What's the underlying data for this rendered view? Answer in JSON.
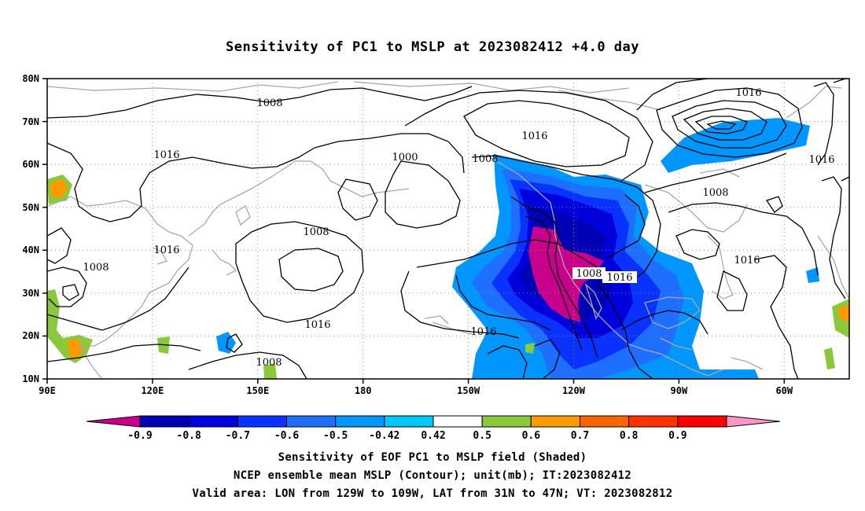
{
  "title": "Sensitivity of PC1 to MSLP at 2023082412 +4.0 day",
  "lat_ticks": [
    "80N",
    "70N",
    "60N",
    "50N",
    "40N",
    "30N",
    "20N",
    "10N"
  ],
  "lon_ticks": [
    "90E",
    "120E",
    "150E",
    "180",
    "150W",
    "120W",
    "90W",
    "60W"
  ],
  "contour_labels": [
    "1008",
    "1016",
    "1000",
    "1008",
    "1016",
    "1016",
    "1016",
    "1008",
    "1016",
    "1008",
    "1016",
    "1016",
    "1008",
    "1016",
    "1008",
    "1008"
  ],
  "colorbar": {
    "labels": [
      "-0.9",
      "-0.8",
      "-0.7",
      "-0.6",
      "-0.5",
      "-0.42",
      "0.42",
      "0.5",
      "0.6",
      "0.7",
      "0.8",
      "0.9"
    ],
    "colors": [
      "#c8008c",
      "#0000b4",
      "#0000dc",
      "#0a32ff",
      "#1e6eff",
      "#0096ff",
      "#00c8ff",
      "#ffffff",
      "#8cc83c",
      "#ff9b00",
      "#ff6400",
      "#ff3200",
      "#ff0000",
      "#ff96c8"
    ]
  },
  "caption": [
    "Sensitivity of EOF PC1 to MSLP field (Shaded)",
    "NCEP ensemble mean MSLP (Contour); unit(mb); IT:2023082412",
    "Valid area: LON from 129W to 109W, LAT from 31N to 47N; VT: 2023082812"
  ]
}
